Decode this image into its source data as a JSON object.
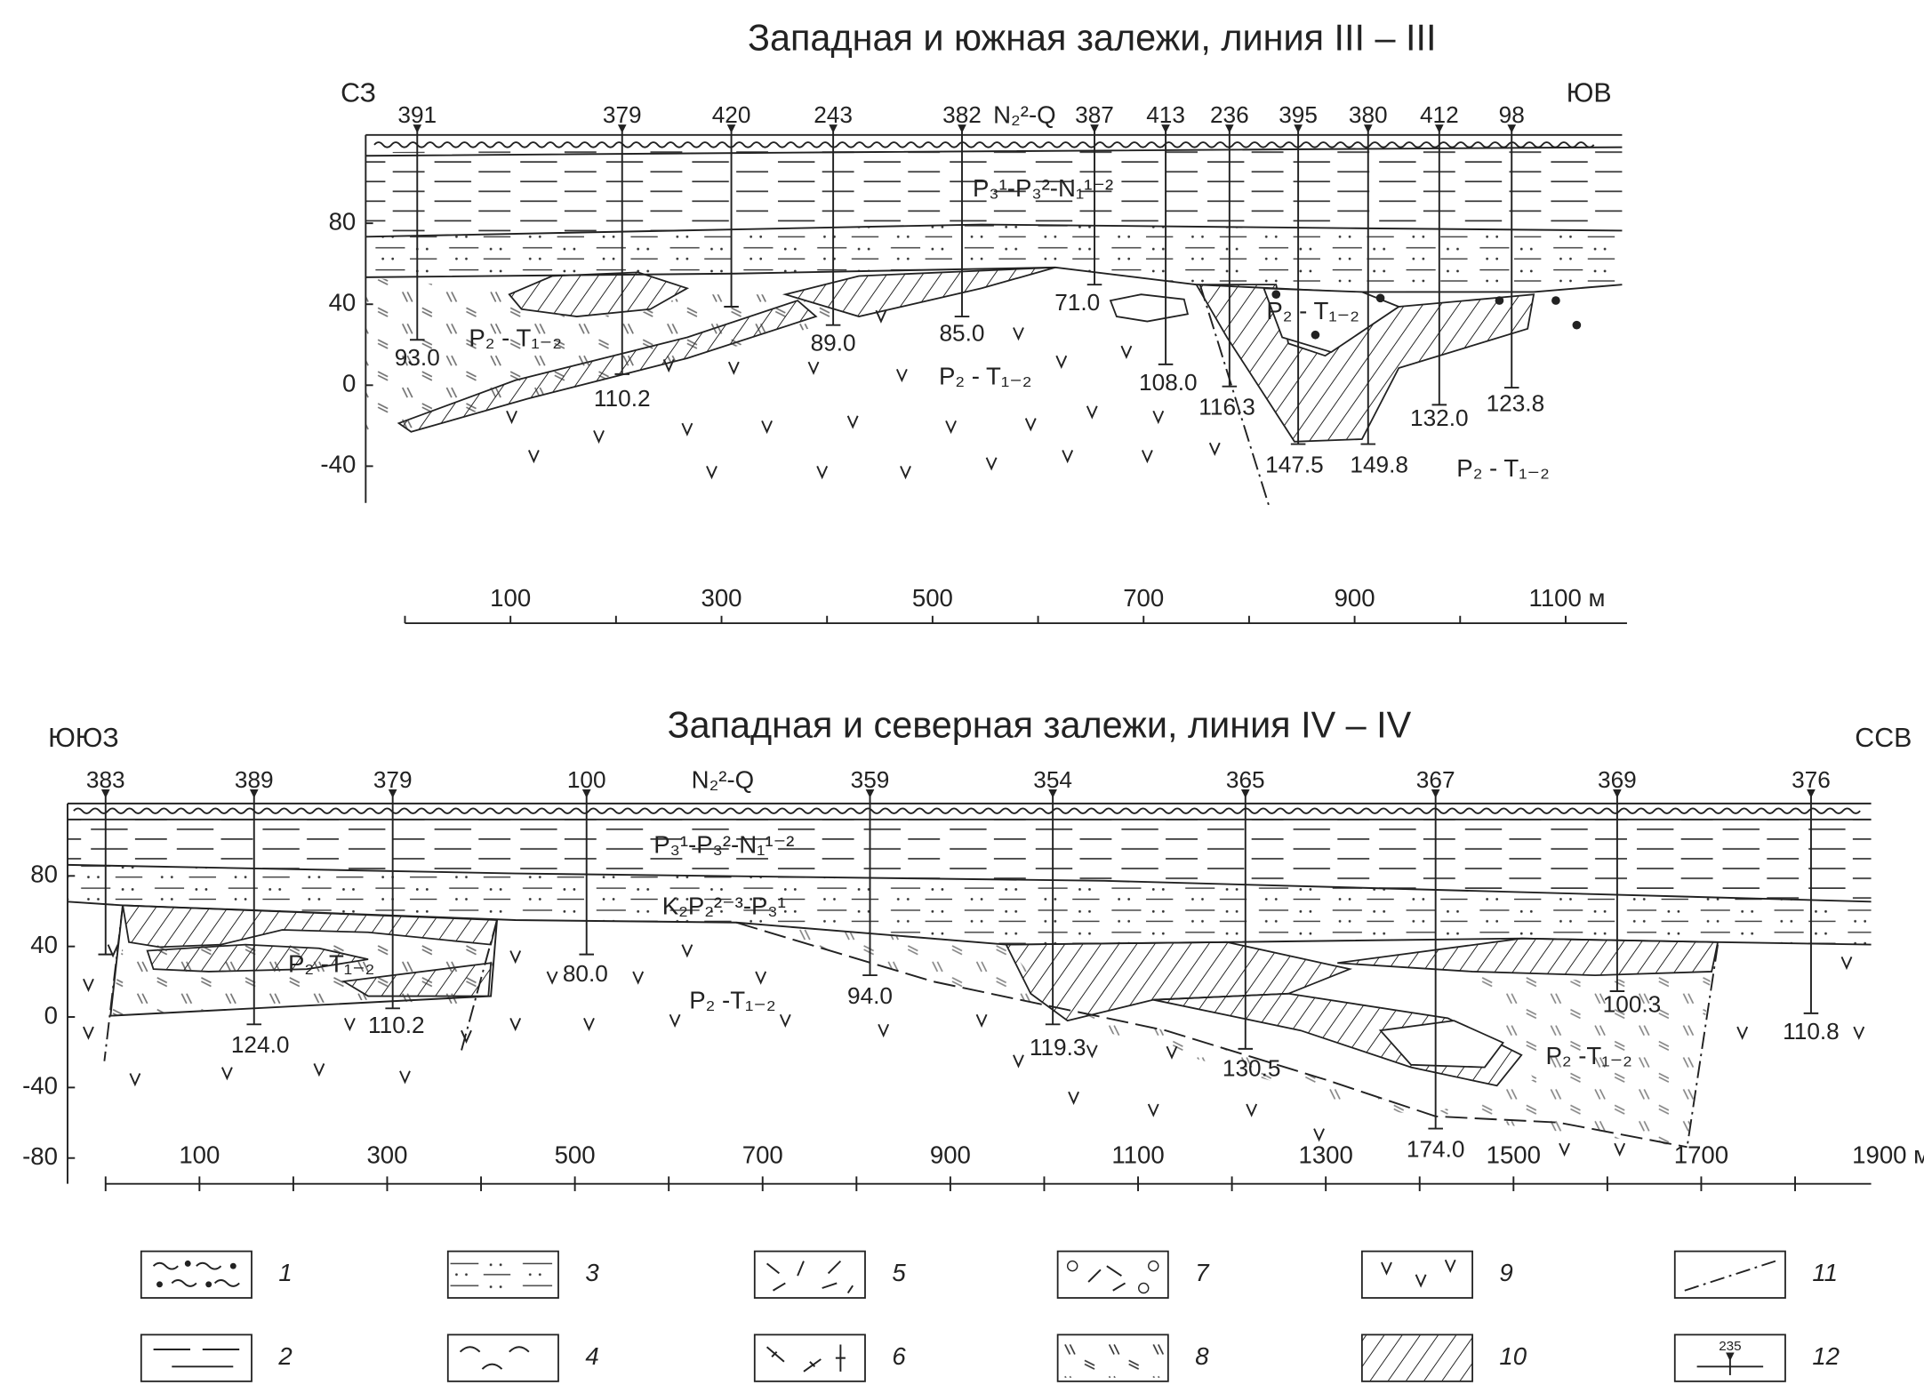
{
  "sections": [
    {
      "title": "Западная и южная залежи, линия III – III",
      "left_label": "СЗ",
      "right_label": "ЮВ",
      "top_label": "N₂²-Q",
      "wells": [
        {
          "number": "391",
          "depth": "93.0"
        },
        {
          "number": "379",
          "depth": "110.2"
        },
        {
          "number": "420"
        },
        {
          "number": "243",
          "depth": "89.0"
        },
        {
          "number": "382",
          "depth": "85.0"
        },
        {
          "number": "387",
          "depth": "71.0"
        },
        {
          "number": "413",
          "depth": "108.0"
        },
        {
          "number": "236",
          "depth": "116.3"
        },
        {
          "number": "395",
          "depth": "147.5"
        },
        {
          "number": "380",
          "depth": "149.8"
        },
        {
          "number": "412",
          "depth": "132.0"
        },
        {
          "number": "98",
          "depth": "123.8"
        }
      ],
      "y_axis": [
        "80",
        "40",
        "0",
        "-40"
      ],
      "x_axis": [
        "100",
        "300",
        "500",
        "700",
        "900",
        "1100 м"
      ],
      "formations": [
        "P₃¹-P₃²-N₁¹⁻²",
        "P₂ - T₁₋₂",
        "P₂ - T₁₋₂",
        "P₂ - T₁₋₂",
        "P₂ - T₁₋₂"
      ]
    },
    {
      "title": "Западная и северная залежи, линия IV – IV",
      "left_label": "ЮЮЗ",
      "right_label": "ССВ",
      "top_label": "N₂²-Q",
      "wells": [
        {
          "number": "383"
        },
        {
          "number": "389",
          "depth": "124.0"
        },
        {
          "number": "379",
          "depth": "110.2"
        },
        {
          "number": "100",
          "depth": "80.0"
        },
        {
          "number": "359",
          "depth": "94.0"
        },
        {
          "number": "354",
          "depth": "119.3"
        },
        {
          "number": "365",
          "depth": "130.5"
        },
        {
          "number": "367",
          "depth": "174.0"
        },
        {
          "number": "369",
          "depth": "100.3"
        },
        {
          "number": "376",
          "depth": "110.8"
        }
      ],
      "y_axis": [
        "80",
        "40",
        "0",
        "-40",
        "-80"
      ],
      "x_axis": [
        "100",
        "300",
        "500",
        "700",
        "900",
        "1100",
        "1300",
        "1500",
        "1700",
        "1900 м"
      ],
      "formations": [
        "P₃¹-P₃²-N₁¹⁻²",
        "K₂P₂²⁻³-P₃¹",
        "P₂ -T₁₋₂",
        "P₂ -T₁₋₂",
        "P₂ -T₁₋₂"
      ]
    }
  ],
  "legend": [
    "1",
    "2",
    "3",
    "4",
    "5",
    "6",
    "7",
    "8",
    "9",
    "10",
    "11",
    "12"
  ],
  "legend_sample": "235"
}
